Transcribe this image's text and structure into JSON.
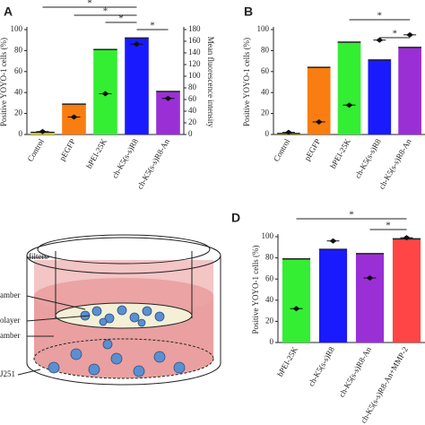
{
  "chart_data": [
    {
      "type": "bar",
      "panel": "A",
      "ylabel": "Positive YOYO-1 cells (%)",
      "y2label": "Mean fluorescence intensity",
      "categories": [
        "Control",
        "pEGFP",
        "bPEI-25K",
        "ch-K5(s-s)R8",
        "ch-K5(s-s)R8-An"
      ],
      "series": [
        {
          "type": "bar",
          "colors": [
            "#f2e600",
            "#f97d10",
            "#33ee33",
            "#1a1aff",
            "#9a2fd6"
          ],
          "values": [
            2,
            29,
            81,
            92,
            41
          ]
        },
        {
          "type": "scatter",
          "axis": "y2",
          "color": "#111",
          "values": [
            5,
            30,
            70,
            155,
            62
          ]
        }
      ],
      "ylim": [
        0,
        100
      ],
      "yticks": [
        0,
        20,
        40,
        60,
        80,
        100
      ],
      "y2lim": [
        0,
        180
      ],
      "y2ticks": [
        0,
        20,
        40,
        60,
        80,
        100,
        120,
        140,
        160,
        180
      ],
      "annotations": [
        "*",
        "*",
        "*",
        "*"
      ]
    },
    {
      "type": "bar",
      "panel": "B",
      "ylabel": "Positive YOYO-1 cells (%)",
      "categories": [
        "Control",
        "pEGFP",
        "bPEI-25K",
        "ch-K5(s-s)R8",
        "ch-K5(s-s)R8-An"
      ],
      "series": [
        {
          "type": "bar",
          "colors": [
            "#f2e600",
            "#f97d10",
            "#33ee33",
            "#1a1aff",
            "#9a2fd6"
          ],
          "values": [
            1,
            64,
            88,
            71,
            83
          ]
        },
        {
          "type": "scatter",
          "color": "#111",
          "values": [
            2,
            12,
            28,
            90,
            95
          ]
        }
      ],
      "ylim": [
        0,
        100
      ],
      "yticks": [
        0,
        20,
        40,
        60,
        80,
        100
      ],
      "annotations": [
        "*",
        "*"
      ]
    },
    {
      "type": "bar",
      "panel": "D",
      "ylabel": "Positive YOYO-1 cells (%)",
      "categories": [
        "bPEI-25K",
        "ch-K5(s-s)R8",
        "ch-K5(s-s)R8-An",
        "ch-K5(s-s)R8-An+MMP-2"
      ],
      "series": [
        {
          "type": "bar",
          "colors": [
            "#33ee33",
            "#1a1aff",
            "#9a2fd6",
            "#ff4545"
          ],
          "values": [
            79,
            88,
            84,
            98
          ]
        },
        {
          "type": "scatter",
          "color": "#111",
          "values": [
            32,
            96,
            61,
            99
          ]
        }
      ],
      "ylim": [
        0,
        100
      ],
      "yticks": [
        0,
        20,
        40,
        60,
        80,
        100
      ],
      "annotations": [
        "*",
        "*"
      ]
    }
  ],
  "diagram": {
    "labels": [
      "filters",
      "amber",
      "olayer",
      "amber",
      "J251"
    ]
  }
}
